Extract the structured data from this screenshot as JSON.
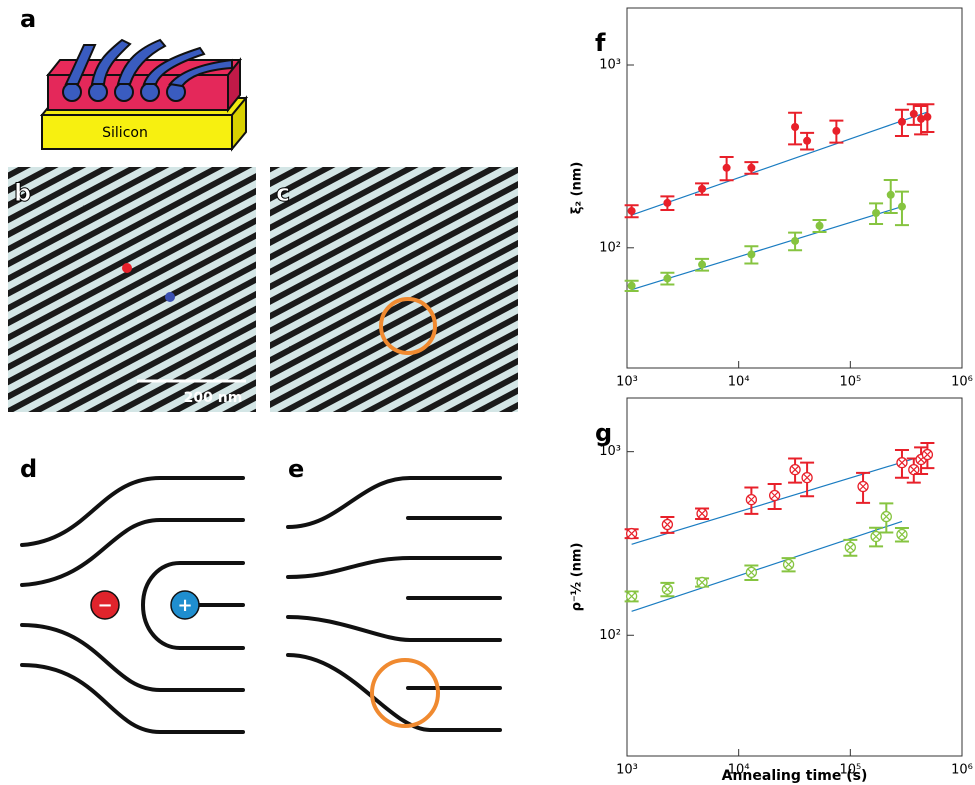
{
  "panel_labels": [
    "a",
    "b",
    "c",
    "d",
    "e"
  ],
  "texts": {
    "substrate": "Silicon",
    "scale_bar": "200 nm",
    "minus": "−",
    "plus": "+"
  },
  "chart_data": [
    {
      "type": "scatter",
      "title": "f",
      "y_label": "ξ₂ (nm)",
      "log_x": true,
      "log_y": true,
      "xlim": [
        1000,
        1000000
      ],
      "ylim": [
        22,
        2050
      ],
      "xticks": [
        {
          "value": 1000,
          "label": "10³"
        },
        {
          "value": 10000,
          "label": "10⁴"
        },
        {
          "value": 100000,
          "label": "10⁵"
        },
        {
          "value": 1000000,
          "label": "10⁶"
        }
      ],
      "yticks": [
        {
          "value": 100,
          "label": "10²"
        },
        {
          "value": 1000,
          "label": "10³"
        }
      ],
      "series": [
        {
          "color": "#e8202a",
          "marker": "filled",
          "x": [
            1100,
            2300,
            4700,
            7800,
            13000,
            32000,
            41000,
            75000,
            290000,
            370000,
            430000,
            490000
          ],
          "values": [
            159,
            176,
            210,
            274,
            274,
            458,
            385,
            436,
            489,
            540,
            507,
            520
          ],
          "errors": [
            12,
            15,
            15,
            40,
            20,
            90,
            40,
            60,
            80,
            70,
            90,
            90
          ]
        },
        {
          "color": "#86c440",
          "marker": "filled",
          "x": [
            1100,
            2300,
            4700,
            13000,
            32000,
            53000,
            170000,
            230000,
            290000
          ],
          "values": [
            62,
            68,
            81,
            92,
            109,
            132,
            155,
            195,
            168
          ],
          "errors": [
            4,
            5,
            6,
            10,
            12,
            10,
            20,
            40,
            35
          ]
        }
      ],
      "fits": [
        {
          "color": "#1a7cc1",
          "x": [
            1100,
            490000
          ],
          "values": [
            151,
            553
          ]
        },
        {
          "color": "#1a7cc1",
          "x": [
            1100,
            290000
          ],
          "values": [
            59,
            168
          ]
        }
      ]
    },
    {
      "type": "scatter",
      "title": "g",
      "y_label": "ρ⁻½ (nm)",
      "x_label": "Annealing time (s)",
      "log_x": true,
      "log_y": true,
      "xlim": [
        1000,
        1000000
      ],
      "ylim": [
        22,
        1960
      ],
      "xticks": [
        {
          "value": 1000,
          "label": "10³"
        },
        {
          "value": 10000,
          "label": "10⁴"
        },
        {
          "value": 100000,
          "label": "10⁵"
        },
        {
          "value": 1000000,
          "label": "10⁶"
        }
      ],
      "yticks": [
        {
          "value": 100,
          "label": "10²"
        },
        {
          "value": 1000,
          "label": "10³"
        }
      ],
      "series": [
        {
          "color": "#e8202a",
          "marker": "crossed",
          "x": [
            1100,
            2300,
            4700,
            13000,
            21000,
            32000,
            41000,
            130000,
            290000,
            370000,
            430000,
            490000
          ],
          "values": [
            358,
            401,
            460,
            548,
            577,
            798,
            722,
            646,
            871,
            798,
            906,
            964
          ],
          "errors": [
            20,
            40,
            30,
            90,
            90,
            120,
            150,
            120,
            150,
            120,
            150,
            150
          ]
        },
        {
          "color": "#86c440",
          "marker": "crossed",
          "x": [
            1100,
            2300,
            4700,
            13000,
            28000,
            100000,
            170000,
            210000,
            290000
          ],
          "values": [
            163,
            178,
            194,
            220,
            243,
            301,
            345,
            443,
            354
          ],
          "errors": [
            10,
            15,
            10,
            20,
            20,
            30,
            40,
            80,
            30
          ]
        }
      ],
      "fits": [
        {
          "color": "#1a7cc1",
          "x": [
            1100,
            490000
          ],
          "values": [
            313,
            964
          ]
        },
        {
          "color": "#1a7cc1",
          "x": [
            1100,
            290000
          ],
          "values": [
            135,
            417
          ]
        }
      ]
    }
  ]
}
